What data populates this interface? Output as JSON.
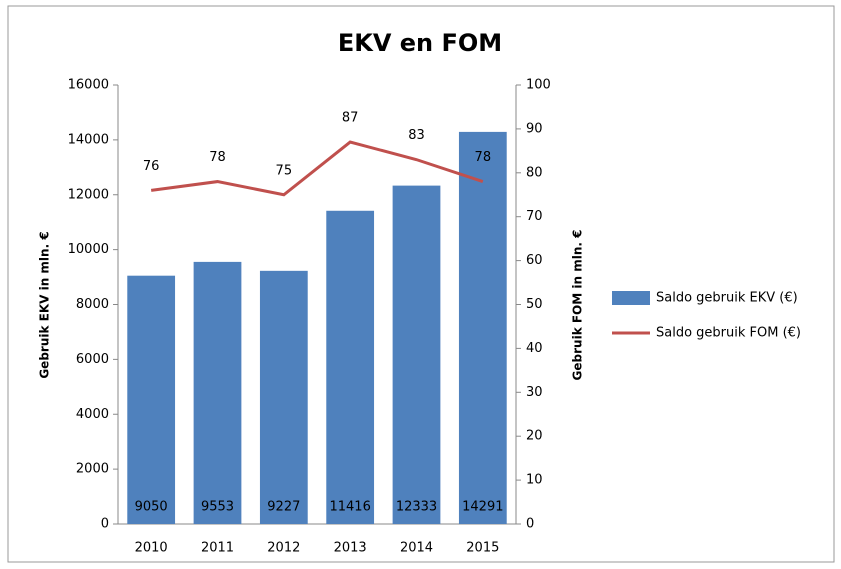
{
  "chart_data": {
    "type": "bar",
    "title": "EKV en FOM",
    "categories": [
      "2010",
      "2011",
      "2012",
      "2013",
      "2014",
      "2015"
    ],
    "series": [
      {
        "name": "Saldo gebruik EKV (€)",
        "color": "#4f81bd",
        "values": [
          9050,
          9553,
          9227,
          11416,
          12333,
          14291
        ]
      },
      {
        "name": "Saldo gebruik FOM (€)",
        "color": "#c0504d",
        "type": "line",
        "axis": "y2",
        "values": [
          76,
          78,
          75,
          87,
          83,
          78
        ]
      }
    ],
    "ylabel": "Gebruik EKV in mln. €",
    "y2label": "Gebruik FOM in mln. €",
    "ylim": [
      0,
      16000
    ],
    "yticks": [
      0,
      2000,
      4000,
      6000,
      8000,
      10000,
      12000,
      14000,
      16000
    ],
    "y2lim": [
      0,
      100
    ],
    "y2ticks": [
      0,
      10,
      20,
      30,
      40,
      50,
      60,
      70,
      80,
      90,
      100
    ],
    "legend": "right"
  }
}
